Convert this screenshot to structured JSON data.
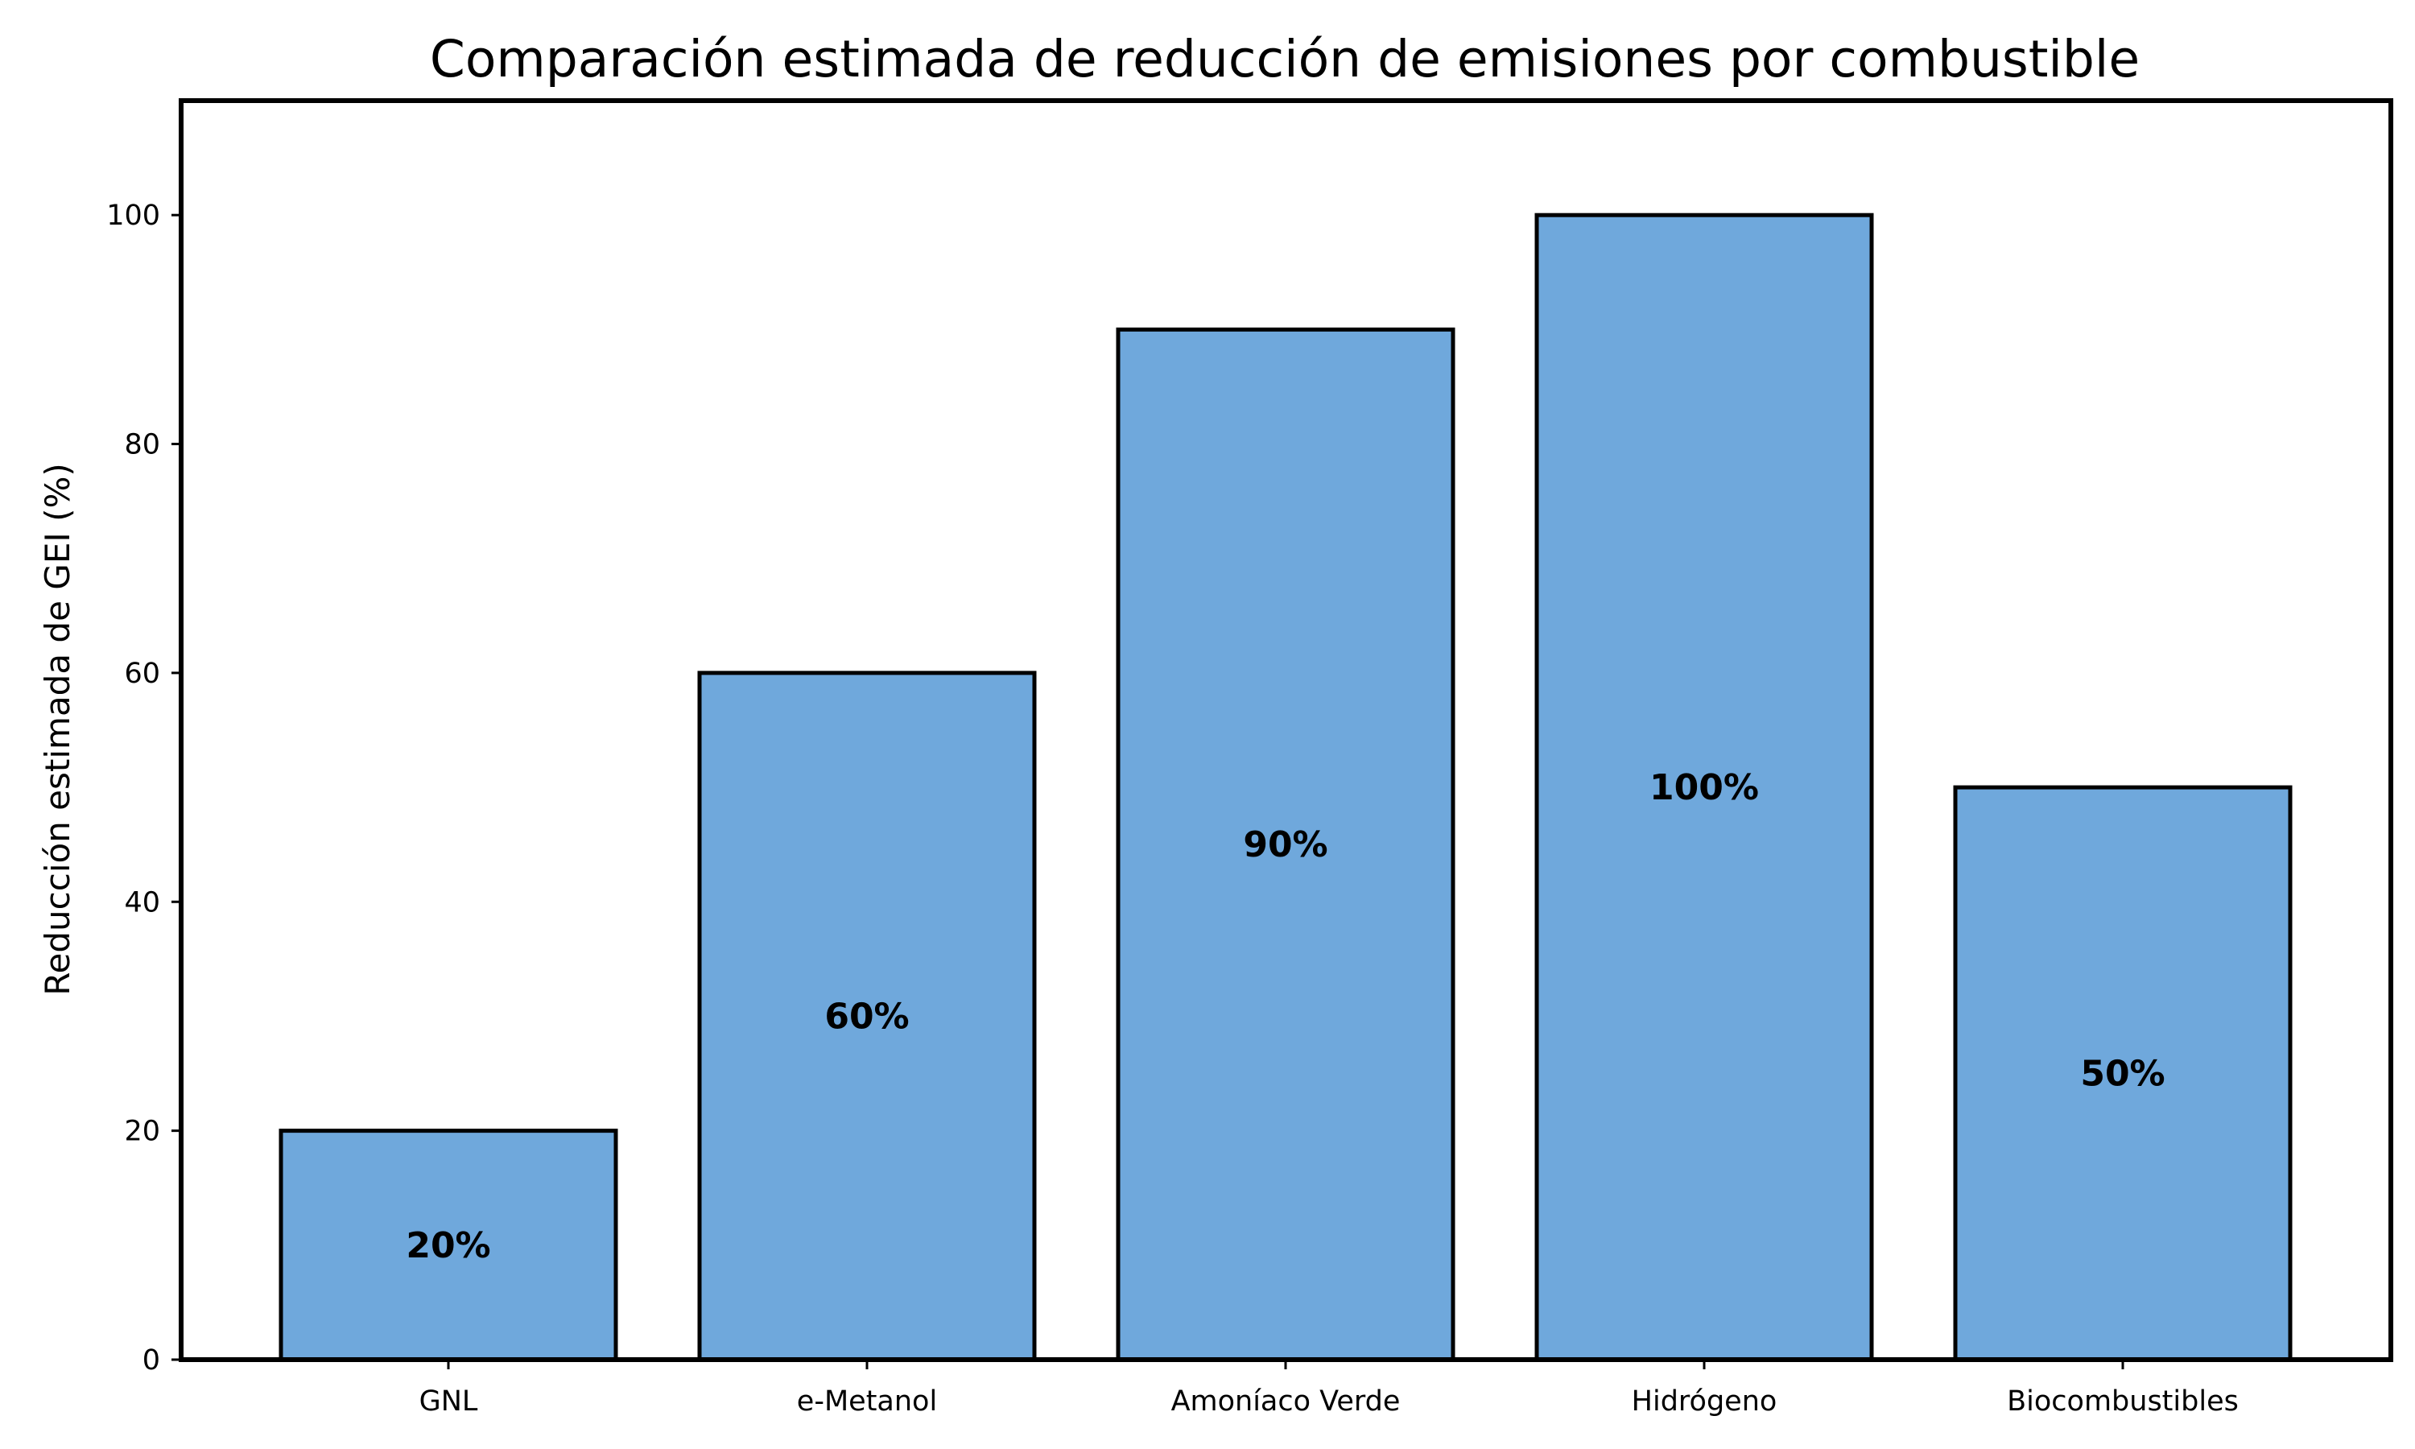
{
  "chart_data": {
    "type": "bar",
    "title": "Comparación estimada de reducción de emisiones por combustible",
    "xlabel": "",
    "ylabel": "Reducción estimada de GEI (%)",
    "categories": [
      "GNL",
      "e-Metanol",
      "Amoníaco Verde",
      "Hidrógeno",
      "Biocombustibles"
    ],
    "values": [
      20,
      60,
      90,
      100,
      50
    ],
    "data_labels": [
      "20%",
      "60%",
      "90%",
      "100%",
      "50%"
    ],
    "ylim": [
      0,
      110
    ],
    "yticks": [
      0,
      20,
      40,
      60,
      80,
      100
    ],
    "grid": false,
    "legend": "none",
    "colors": {
      "bar_fill": "#6fa8dc",
      "bar_edge": "#000000",
      "frame": "#000000",
      "text": "#000000"
    }
  }
}
